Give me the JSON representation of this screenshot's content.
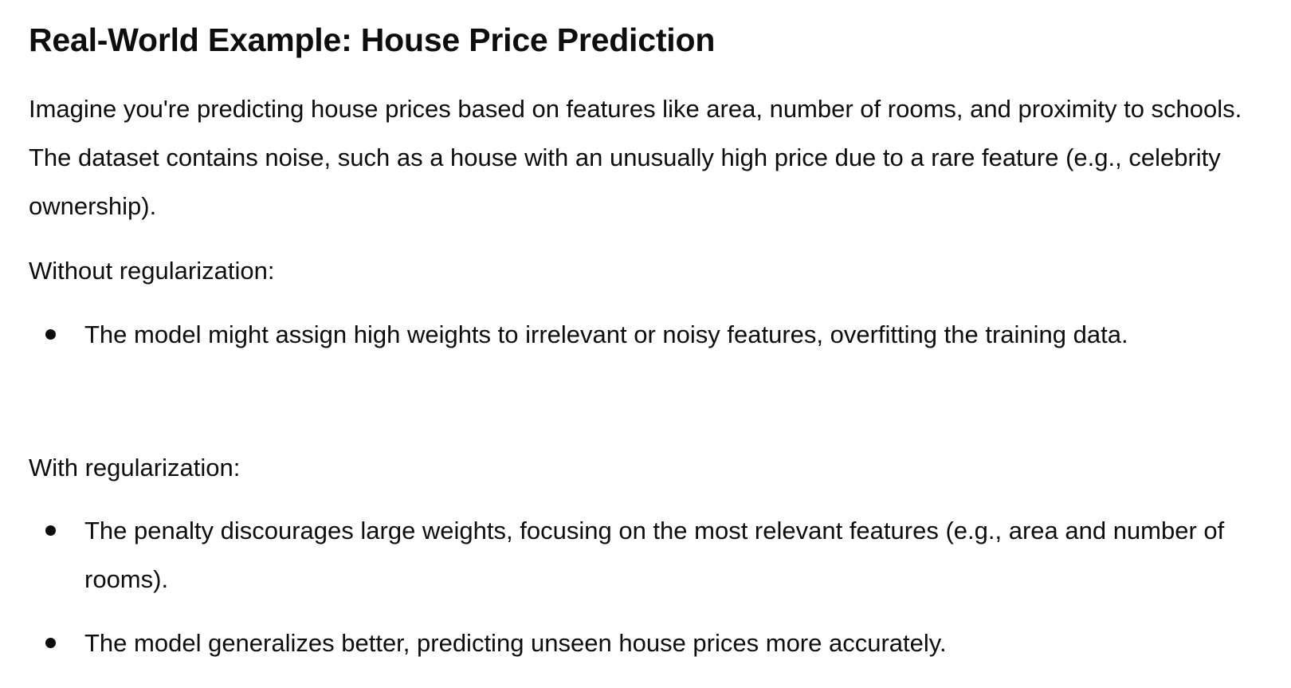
{
  "section": {
    "title": "Real-World Example: House Price Prediction",
    "intro": "Imagine you're predicting house prices based on features like area, number of rooms, and proximity to schools. The dataset contains noise, such as a house with an unusually high price due to a rare feature (e.g., celebrity ownership).",
    "without": {
      "label": "Without regularization:",
      "bullets": [
        "The model might assign high weights to irrelevant or noisy features, overfitting the training data."
      ]
    },
    "with": {
      "label": "With regularization:",
      "bullets": [
        "The penalty discourages large weights, focusing on the most relevant features (e.g., area and number of rooms).",
        "The model generalizes better, predicting unseen house prices more accurately."
      ]
    }
  }
}
